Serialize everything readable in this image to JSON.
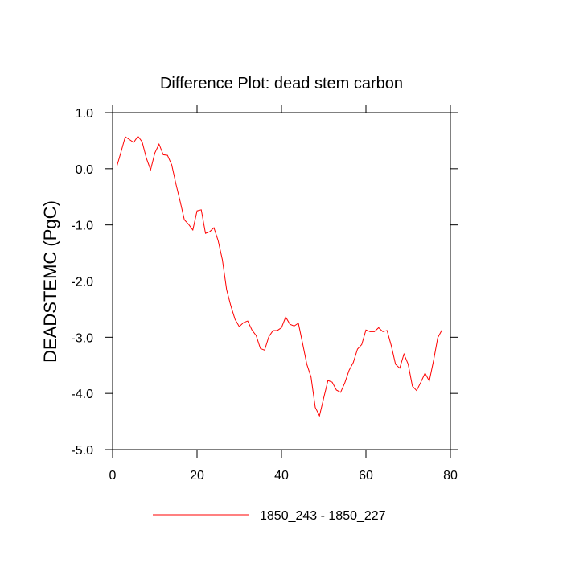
{
  "chart_data": {
    "type": "line",
    "title": "Difference Plot: dead stem carbon",
    "y_label": "DEADSTEMC  (PgC)",
    "x": [
      1,
      2,
      3,
      4,
      5,
      6,
      7,
      8,
      9,
      10,
      11,
      12,
      13,
      14,
      15,
      16,
      17,
      18,
      19,
      20,
      21,
      22,
      23,
      24,
      25,
      26,
      27,
      28,
      29,
      30,
      31,
      32,
      33,
      34,
      35,
      36,
      37,
      38,
      39,
      40,
      41,
      42,
      43,
      44,
      45,
      46,
      47,
      48,
      49,
      50,
      51,
      52,
      53,
      54,
      55,
      56,
      57,
      58,
      59,
      60,
      61,
      62,
      63,
      64,
      65,
      66,
      67,
      68,
      69,
      70,
      71,
      72,
      73,
      74,
      75,
      76,
      77,
      78
    ],
    "series": [
      {
        "name": "1850_243 - 1850_227",
        "color": "#ff0000",
        "values": [
          0.04,
          0.3,
          0.57,
          0.52,
          0.47,
          0.58,
          0.48,
          0.19,
          -0.02,
          0.28,
          0.44,
          0.25,
          0.24,
          0.07,
          -0.27,
          -0.58,
          -0.91,
          -0.99,
          -1.09,
          -0.75,
          -0.73,
          -1.15,
          -1.12,
          -1.05,
          -1.28,
          -1.62,
          -2.15,
          -2.44,
          -2.68,
          -2.81,
          -2.74,
          -2.71,
          -2.87,
          -2.97,
          -3.2,
          -3.23,
          -2.99,
          -2.88,
          -2.88,
          -2.83,
          -2.64,
          -2.77,
          -2.8,
          -2.75,
          -3.11,
          -3.48,
          -3.71,
          -4.25,
          -4.4,
          -4.08,
          -3.77,
          -3.8,
          -3.94,
          -3.98,
          -3.81,
          -3.59,
          -3.45,
          -3.21,
          -3.13,
          -2.87,
          -2.9,
          -2.9,
          -2.83,
          -2.9,
          -2.88,
          -3.15,
          -3.48,
          -3.55,
          -3.3,
          -3.48,
          -3.87,
          -3.95,
          -3.8,
          -3.64,
          -3.78,
          -3.42,
          -3.01,
          -2.87
        ]
      }
    ],
    "xlim": [
      0,
      80
    ],
    "xticks": [
      0,
      20,
      40,
      60,
      80
    ],
    "ylim": [
      -5,
      1
    ],
    "yticks": [
      {
        "value": -5,
        "label": "-5.0"
      },
      {
        "value": -4,
        "label": "-4.0"
      },
      {
        "value": -3,
        "label": "-3.0"
      },
      {
        "value": -2,
        "label": "-2.0"
      },
      {
        "value": -1,
        "label": "-1.0"
      },
      {
        "value": 0,
        "label": "0.0"
      },
      {
        "value": 1,
        "label": "1.0"
      }
    ],
    "grid": false
  }
}
